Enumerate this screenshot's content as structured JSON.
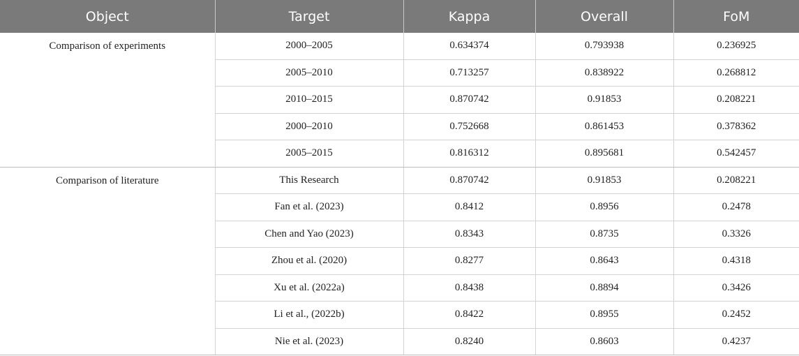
{
  "table": {
    "headers": [
      "Object",
      "Target",
      "Kappa",
      "Overall",
      "FoM"
    ],
    "groups": [
      {
        "name": "Comparison of experiments",
        "rows": [
          [
            "2000–2005",
            "0.634374",
            "0.793938",
            "0.236925"
          ],
          [
            "2005–2010",
            "0.713257",
            "0.838922",
            "0.268812"
          ],
          [
            "2010–2015",
            "0.870742",
            "0.91853",
            "0.208221"
          ],
          [
            "2000–2010",
            "0.752668",
            "0.861453",
            "0.378362"
          ],
          [
            "2005–2015",
            "0.816312",
            "0.895681",
            "0.542457"
          ]
        ]
      },
      {
        "name": "Comparison of literature",
        "rows": [
          [
            "This Research",
            "0.870742",
            "0.91853",
            "0.208221"
          ],
          [
            "Fan et al. (2023)",
            "0.8412",
            "0.8956",
            "0.2478"
          ],
          [
            "Chen and Yao (2023)",
            "0.8343",
            "0.8735",
            "0.3326"
          ],
          [
            "Zhou et al. (2020)",
            "0.8277",
            "0.8643",
            "0.4318"
          ],
          [
            "Xu et al. (2022a)",
            "0.8438",
            "0.8894",
            "0.3426"
          ],
          [
            "Li et al., (2022b)",
            "0.8422",
            "0.8955",
            "0.2452"
          ],
          [
            "Nie et al. (2023)",
            "0.8240",
            "0.8603",
            "0.4237"
          ]
        ]
      }
    ]
  }
}
